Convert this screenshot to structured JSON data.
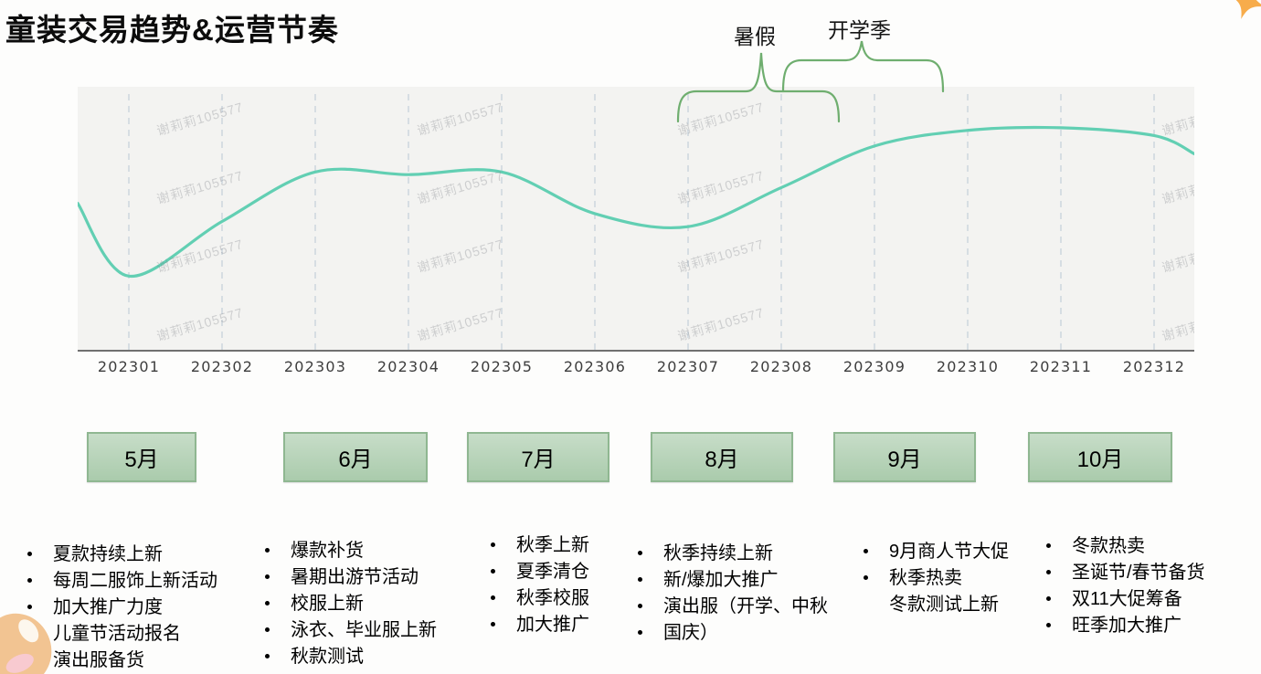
{
  "page": {
    "title": "童装交易趋势&运营节奏"
  },
  "chart_data": {
    "type": "line",
    "title": "童装交易趋势",
    "xlabel": "",
    "ylabel": "",
    "x_labels": [
      "202301",
      "202302",
      "202303",
      "202304",
      "202305",
      "202306",
      "202307",
      "202308",
      "202309",
      "202310",
      "202311",
      "202312"
    ],
    "series": [
      {
        "name": "交易趋势",
        "values": [
          29,
          50,
          69,
          68,
          69,
          53,
          48,
          63,
          79,
          85,
          86,
          83
        ]
      }
    ],
    "edge_start_value": 57,
    "edge_end_value": 76,
    "ylim": [
      0,
      100
    ],
    "y_axis_shown": false,
    "grid": "vertical-dashed",
    "legend": "none",
    "line_color": "#62CFB3",
    "annotations": [
      {
        "label": "暑假",
        "span": [
          "202307",
          "202308"
        ]
      },
      {
        "label": "开学季",
        "span": [
          "202308",
          "202310"
        ]
      }
    ],
    "watermark_text": "谢莉莉105577"
  },
  "operations": {
    "months": [
      {
        "label": "5月",
        "items": [
          {
            "text": "夏款持续上新"
          },
          {
            "text": "每周二服饰上新活动"
          },
          {
            "text": "加大推广力度"
          },
          {
            "text": "儿童节活动报名"
          },
          {
            "text": "演出服备货"
          }
        ]
      },
      {
        "label": "6月",
        "items": [
          {
            "text": "爆款补货"
          },
          {
            "text": "暑期出游节活动"
          },
          {
            "text": "校服上新"
          },
          {
            "text": "泳衣、毕业服上新"
          },
          {
            "text": "秋款测试"
          }
        ]
      },
      {
        "label": "7月",
        "items": [
          {
            "text": "秋季上新"
          },
          {
            "text": "夏季清仓"
          },
          {
            "text": "秋季校服"
          },
          {
            "text": "加大推广"
          }
        ]
      },
      {
        "label": "8月",
        "items": [
          {
            "text": "秋季持续上新"
          },
          {
            "text": "新/爆加大推广"
          },
          {
            "text": "演出服（开学、中秋"
          },
          {
            "text": "国庆）"
          }
        ]
      },
      {
        "label": "9月",
        "items": [
          {
            "text": "9月商人节大促"
          },
          {
            "text": "秋季热卖"
          },
          {
            "text": "冬款测试上新",
            "bullet": false
          }
        ]
      },
      {
        "label": "10月",
        "items": [
          {
            "text": "冬款热卖"
          },
          {
            "text": "圣诞节/春节备货"
          },
          {
            "text": "双11大促筹备"
          },
          {
            "text": "旺季加大推广"
          }
        ]
      }
    ]
  },
  "colors": {
    "line": "#62CFB3",
    "gridline": "#CFD8DF",
    "axis": "#707070",
    "brace": "#6FAE6F",
    "month_box_fill": "#B7D6B9",
    "month_box_border": "#8FB791",
    "chart_background": "#F3F3F1",
    "decoration_orange": "#F7AC4B",
    "decoration_tan": "#F2C492",
    "decoration_pink": "#F8CAD0"
  }
}
